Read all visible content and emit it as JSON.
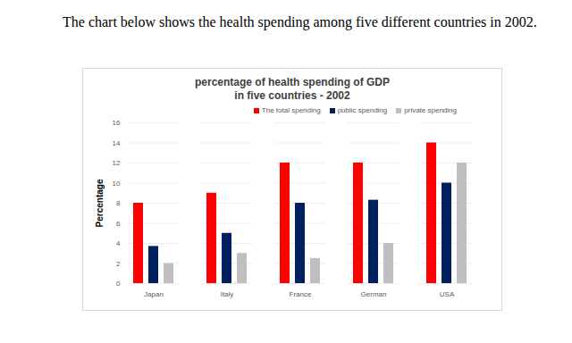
{
  "page": {
    "heading": "The chart below shows the health spending among five different countries in 2002."
  },
  "chart_data": {
    "type": "bar",
    "title": "percentage of health spending of GDP\nin five countries - 2002",
    "y_label": "Percentage",
    "categories": [
      "Japan",
      "Italy",
      "France",
      "German",
      "USA"
    ],
    "series": [
      {
        "name": "The total spending",
        "color": "#ff0000",
        "values": [
          8,
          9,
          12,
          12,
          14
        ]
      },
      {
        "name": "public spending",
        "color": "#002060",
        "values": [
          3.7,
          5,
          8,
          8.3,
          10
        ]
      },
      {
        "name": "private spending",
        "color": "#bfbfbf",
        "values": [
          2,
          3,
          2.5,
          4,
          12
        ]
      }
    ],
    "ylim": [
      0,
      16
    ],
    "yticks": [
      0,
      2,
      4,
      6,
      8,
      10,
      12,
      14,
      16
    ],
    "grid": true,
    "legend": "top"
  }
}
